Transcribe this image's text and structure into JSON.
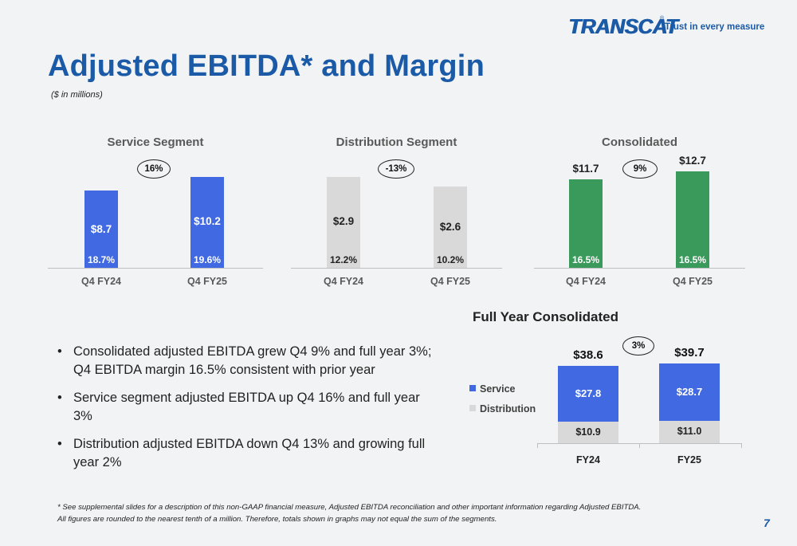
{
  "logo": {
    "brand": "TRANSCAT",
    "registered": "®",
    "tagline": "Trust in every measure"
  },
  "title": "Adjusted EBITDA* and Margin",
  "subtitle": "($ in millions)",
  "colors": {
    "brand_blue": "#1b5aa6",
    "service": "#4169e1",
    "distribution": "#d9d9d9",
    "consolidated": "#3a9a5b"
  },
  "chart_data": [
    {
      "type": "bar",
      "title": "Service Segment",
      "categories": [
        "Q4 FY24",
        "Q4 FY25"
      ],
      "series": [
        {
          "name": "",
          "values": [
            8.7,
            10.2
          ],
          "labels": [
            "$8.7",
            "$10.2"
          ],
          "margins": [
            "18.7%",
            "19.6%"
          ]
        }
      ],
      "change": "16%",
      "ylim": [
        0,
        10.2
      ]
    },
    {
      "type": "bar",
      "title": "Distribution Segment",
      "categories": [
        "Q4 FY24",
        "Q4 FY25"
      ],
      "series": [
        {
          "name": "",
          "values": [
            2.9,
            2.6
          ],
          "labels": [
            "$2.9",
            "$2.6"
          ],
          "margins": [
            "12.2%",
            "10.2%"
          ]
        }
      ],
      "change": "-13%",
      "ylim": [
        0,
        2.9
      ]
    },
    {
      "type": "bar",
      "title": "Consolidated",
      "categories": [
        "Q4 FY24",
        "Q4 FY25"
      ],
      "series": [
        {
          "name": "",
          "values": [
            11.7,
            12.7
          ],
          "labels": [
            "$11.7",
            "$12.7"
          ],
          "margins": [
            "16.5%",
            "16.5%"
          ]
        }
      ],
      "change": "9%",
      "ylim": [
        0,
        12.7
      ]
    },
    {
      "type": "bar",
      "stacked": true,
      "title": "Full Year Consolidated",
      "categories": [
        "FY24",
        "FY25"
      ],
      "series": [
        {
          "name": "Distribution",
          "values": [
            10.9,
            11.0
          ],
          "labels": [
            "$10.9",
            "$11.0"
          ]
        },
        {
          "name": "Service",
          "values": [
            27.8,
            28.7
          ],
          "labels": [
            "$27.8",
            "$28.7"
          ]
        }
      ],
      "totals": [
        "$38.6",
        "$39.7"
      ],
      "total_values": [
        38.6,
        39.7
      ],
      "change": "3%",
      "legend": [
        "Service",
        "Distribution"
      ],
      "legend_position": "left",
      "ylim": [
        0,
        39.7
      ]
    }
  ],
  "bullets": [
    "Consolidated adjusted EBITDA grew Q4 9% and full year 3%; Q4 EBITDA margin 16.5% consistent with prior year",
    "Service segment adjusted EBITDA up Q4 16% and full year 3%",
    "Distribution adjusted EBITDA down Q4 13% and growing full year 2%"
  ],
  "bullet_symbol": "•",
  "footnote": [
    "* See supplemental slides for a description of this non-GAAP financial measure, Adjusted EBITDA reconciliation and other important information regarding Adjusted EBITDA.",
    "All figures are rounded to the nearest tenth of a million. Therefore, totals shown in graphs may not equal the sum of the segments."
  ],
  "page_number": "7"
}
